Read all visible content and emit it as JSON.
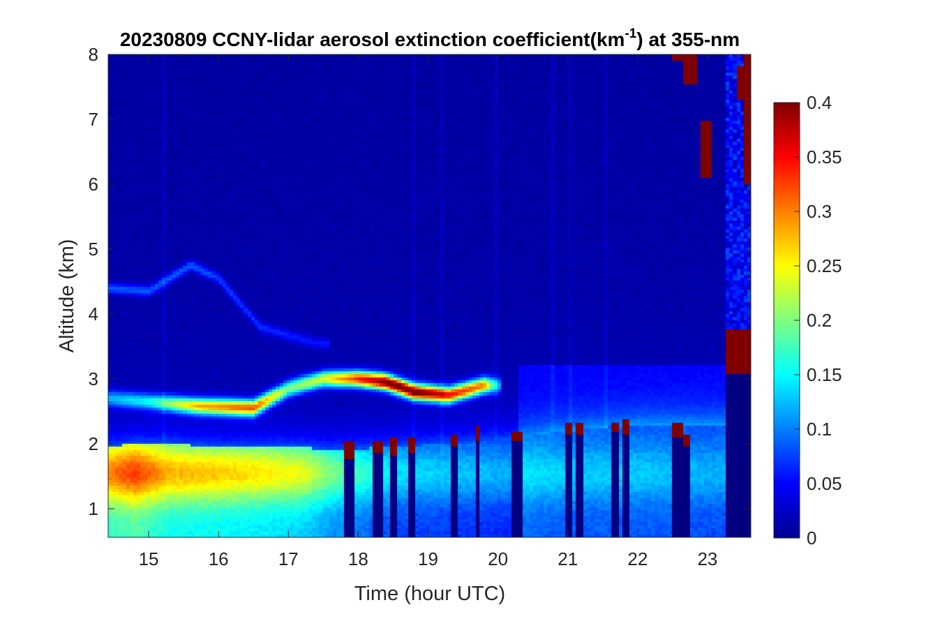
{
  "chart_data": {
    "type": "heatmap",
    "title": {
      "main": "20230809 CCNY-lidar aerosol extinction coefficient(km",
      "superscript": "-1",
      "tail": ") at 355-nm"
    },
    "xlabel": "Time (hour UTC)",
    "ylabel": "Altitude (km)",
    "xlim": [
      14.42,
      23.62
    ],
    "ylim": [
      0.56,
      8.0
    ],
    "x_ticks": [
      15,
      16,
      17,
      18,
      19,
      20,
      21,
      22,
      23
    ],
    "x_tick_labels": [
      "15",
      "16",
      "17",
      "18",
      "19",
      "20",
      "21",
      "22",
      "23"
    ],
    "y_ticks": [
      1,
      2,
      3,
      4,
      5,
      6,
      7,
      8
    ],
    "y_tick_labels": [
      "1",
      "2",
      "3",
      "4",
      "5",
      "6",
      "7",
      "8"
    ],
    "colorbar": {
      "colormap": "jet",
      "range": [
        0,
        0.4
      ],
      "ticks": [
        0,
        0.05,
        0.1,
        0.15,
        0.2,
        0.25,
        0.3,
        0.35,
        0.4
      ],
      "tick_labels": [
        "0",
        "0.05",
        "0.1",
        "0.15",
        "0.2",
        "0.25",
        "0.3",
        "0.35",
        "0.4"
      ]
    },
    "features": {
      "boundary_layer": [
        {
          "t": 14.42,
          "top": 1.95,
          "peak": 0.3
        },
        {
          "t": 14.8,
          "top": 2.0,
          "peak": 0.33
        },
        {
          "t": 15.3,
          "top": 2.0,
          "peak": 0.28
        },
        {
          "t": 16.0,
          "top": 1.95,
          "peak": 0.27
        },
        {
          "t": 16.5,
          "top": 1.95,
          "peak": 0.26
        },
        {
          "t": 17.2,
          "top": 1.95,
          "peak": 0.24
        },
        {
          "t": 17.6,
          "top": 1.9,
          "peak": 0.2
        },
        {
          "t": 18.5,
          "top": 1.95,
          "peak": 0.14
        },
        {
          "t": 20.0,
          "top": 2.05,
          "peak": 0.12
        },
        {
          "t": 21.0,
          "top": 2.2,
          "peak": 0.1
        },
        {
          "t": 22.0,
          "top": 2.3,
          "peak": 0.1
        },
        {
          "t": 23.0,
          "top": 2.3,
          "peak": 0.09
        }
      ],
      "elevated_layer": [
        {
          "t": 14.42,
          "z": 2.7,
          "val": 0.1
        },
        {
          "t": 15.0,
          "z": 2.65,
          "val": 0.13
        },
        {
          "t": 15.7,
          "z": 2.58,
          "val": 0.26
        },
        {
          "t": 16.5,
          "z": 2.55,
          "val": 0.3
        },
        {
          "t": 17.0,
          "z": 2.85,
          "val": 0.18
        },
        {
          "t": 17.5,
          "z": 3.0,
          "val": 0.22
        },
        {
          "t": 18.0,
          "z": 3.0,
          "val": 0.32
        },
        {
          "t": 18.4,
          "z": 2.95,
          "val": 0.4
        },
        {
          "t": 18.8,
          "z": 2.8,
          "val": 0.4
        },
        {
          "t": 19.3,
          "z": 2.75,
          "val": 0.33
        },
        {
          "t": 19.8,
          "z": 2.9,
          "val": 0.28
        },
        {
          "t": 20.0,
          "z": 2.9,
          "val": 0.1
        }
      ],
      "upper_layer": [
        {
          "t": 14.42,
          "z": 4.4,
          "val": 0.07
        },
        {
          "t": 15.0,
          "z": 4.35,
          "val": 0.07
        },
        {
          "t": 15.6,
          "z": 4.75,
          "val": 0.07
        },
        {
          "t": 16.0,
          "z": 4.55,
          "val": 0.06
        },
        {
          "t": 16.6,
          "z": 3.8,
          "val": 0.05
        },
        {
          "t": 17.4,
          "z": 3.55,
          "val": 0.04
        }
      ],
      "low_clouds": [
        {
          "t0": 17.78,
          "t1": 17.94,
          "base": 1.75,
          "top": 2.05
        },
        {
          "t0": 18.2,
          "t1": 18.36,
          "base": 1.85,
          "top": 2.05
        },
        {
          "t0": 18.44,
          "t1": 18.56,
          "base": 1.8,
          "top": 2.1
        },
        {
          "t0": 18.7,
          "t1": 18.8,
          "base": 1.88,
          "top": 2.08
        },
        {
          "t0": 19.32,
          "t1": 19.42,
          "base": 1.95,
          "top": 2.15
        },
        {
          "t0": 19.66,
          "t1": 19.76,
          "base": 2.05,
          "top": 2.28
        },
        {
          "t0": 20.18,
          "t1": 20.36,
          "base": 2.05,
          "top": 2.2
        },
        {
          "t0": 20.96,
          "t1": 21.04,
          "base": 2.15,
          "top": 2.35
        },
        {
          "t0": 21.12,
          "t1": 21.2,
          "base": 2.15,
          "top": 2.35
        },
        {
          "t0": 21.64,
          "t1": 21.72,
          "base": 2.2,
          "top": 2.32
        },
        {
          "t0": 21.8,
          "t1": 21.9,
          "base": 2.15,
          "top": 2.38
        },
        {
          "t0": 22.5,
          "t1": 22.64,
          "base": 2.1,
          "top": 2.32
        },
        {
          "t0": 22.64,
          "t1": 22.74,
          "base": 1.95,
          "top": 2.15
        }
      ],
      "high_clouds": [
        {
          "t0": 22.5,
          "t1": 22.65,
          "base": 7.9,
          "top": 8.0
        },
        {
          "t0": 22.65,
          "t1": 22.84,
          "base": 7.55,
          "top": 8.0
        },
        {
          "t0": 22.92,
          "t1": 23.08,
          "base": 6.1,
          "top": 7.0
        },
        {
          "t0": 23.42,
          "t1": 23.52,
          "base": 7.3,
          "top": 7.8
        },
        {
          "t0": 23.54,
          "t1": 23.62,
          "base": 6.0,
          "top": 8.0
        }
      ],
      "opaque_cloud": {
        "t0": 23.28,
        "t1": 23.62,
        "base": 3.05,
        "top": 3.75
      }
    }
  }
}
